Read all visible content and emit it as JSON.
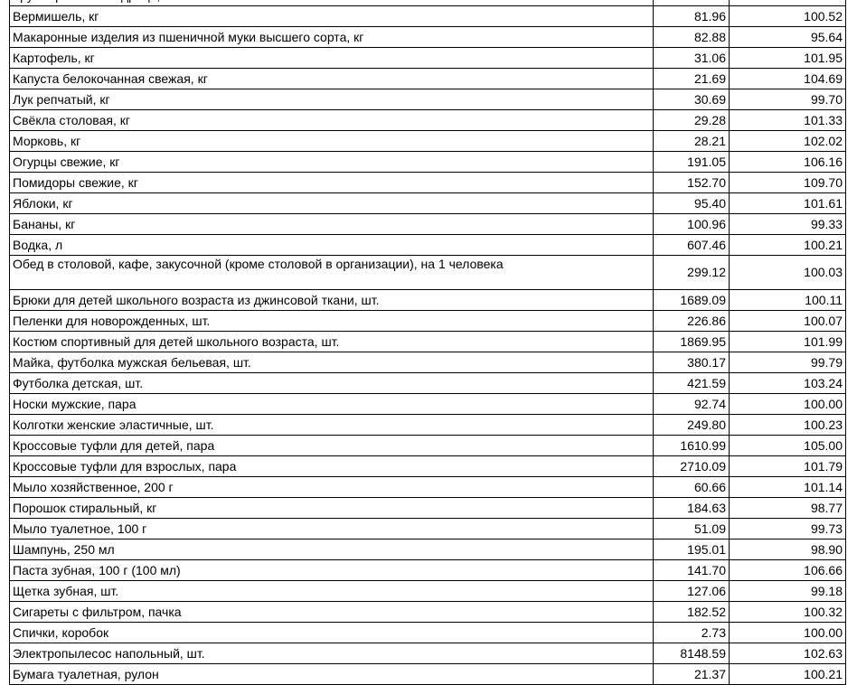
{
  "table": {
    "partial_top_row": "Крупа гречневая-ядрица, кг",
    "rows": [
      [
        "Вермишель, кг",
        "81.96",
        "100.52"
      ],
      [
        "Макаронные изделия из пшеничной муки высшего сорта, кг",
        "82.88",
        "95.64"
      ],
      [
        "Картофель, кг",
        "31.06",
        "101.95"
      ],
      [
        "Капуста белокочанная свежая, кг",
        "21.69",
        "104.69"
      ],
      [
        "Лук репчатый, кг",
        "30.69",
        "99.70"
      ],
      [
        "Свёкла столовая, кг",
        "29.28",
        "101.33"
      ],
      [
        "Морковь, кг",
        "28.21",
        "102.02"
      ],
      [
        "Огурцы свежие, кг",
        "191.05",
        "106.16"
      ],
      [
        "Помидоры свежие, кг",
        "152.70",
        "109.70"
      ],
      [
        "Яблоки, кг",
        "95.40",
        "101.61"
      ],
      [
        "Бананы, кг",
        "100.96",
        "99.33"
      ],
      [
        "Водка, л",
        "607.46",
        "100.21"
      ],
      [
        "Обед в столовой, кафе, закусочной (кроме столовой в организации), на 1 человека",
        "299.12",
        "100.03"
      ],
      [
        "Брюки для детей школьного возраста из джинсовой ткани, шт.",
        "1689.09",
        "100.11"
      ],
      [
        "Пеленки для новорожденных, шт.",
        "226.86",
        "100.07"
      ],
      [
        "Костюм спортивный для детей школьного возраста, шт.",
        "1869.95",
        "101.99"
      ],
      [
        "Майка, футболка мужская бельевая, шт.",
        "380.17",
        "99.79"
      ],
      [
        "Футболка детская, шт.",
        "421.59",
        "103.24"
      ],
      [
        "Носки мужские, пара",
        "92.74",
        "100.00"
      ],
      [
        "Колготки женские эластичные, шт.",
        "249.80",
        "100.23"
      ],
      [
        "Кроссовые туфли для детей, пара",
        "1610.99",
        "105.00"
      ],
      [
        "Кроссовые туфли для взрослых, пара",
        "2710.09",
        "101.79"
      ],
      [
        "Мыло хозяйственное, 200 г",
        "60.66",
        "101.14"
      ],
      [
        "Порошок стиральный, кг",
        "184.63",
        "98.77"
      ],
      [
        "Мыло туалетное, 100 г",
        "51.09",
        "99.73"
      ],
      [
        "Шампунь, 250 мл",
        "195.01",
        "98.90"
      ],
      [
        "Паста зубная, 100 г (100 мл)",
        "141.70",
        "106.66"
      ],
      [
        "Щетка зубная, шт.",
        "127.06",
        "99.18"
      ],
      [
        "Сигареты с фильтром, пачка",
        "182.52",
        "100.32"
      ],
      [
        "Спички, коробок",
        "2.73",
        "100.00"
      ],
      [
        "Электропылесос напольный, шт.",
        "8148.59",
        "102.63"
      ],
      [
        "Бумага туалетная, рулон",
        "21.37",
        "100.21"
      ]
    ]
  }
}
